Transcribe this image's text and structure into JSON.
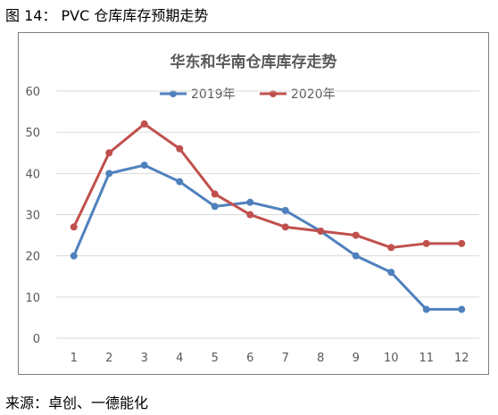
{
  "figure_caption": "图 14：  PVC 仓库库存预期走势",
  "source": "来源：卓创、一德能化",
  "chart_data": {
    "type": "line",
    "title": "华东和华南仓库库存走势",
    "xlabel": "",
    "ylabel": "",
    "categories": [
      "1",
      "2",
      "3",
      "4",
      "5",
      "6",
      "7",
      "8",
      "9",
      "10",
      "11",
      "12"
    ],
    "ylim": [
      0,
      60
    ],
    "yticks": [
      0,
      10,
      20,
      30,
      40,
      50,
      60
    ],
    "grid": "horizontal",
    "legend_position": "top",
    "series": [
      {
        "name": "2019年",
        "color": "#4F81BD",
        "values": [
          20,
          40,
          42,
          38,
          32,
          33,
          31,
          26,
          20,
          16,
          7,
          7
        ]
      },
      {
        "name": "2020年",
        "color": "#C0504D",
        "values": [
          27,
          45,
          52,
          46,
          35,
          30,
          27,
          26,
          25,
          22,
          23,
          23
        ]
      }
    ]
  }
}
